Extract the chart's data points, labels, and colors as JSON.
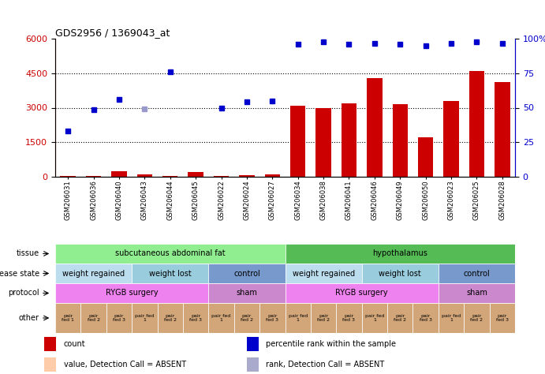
{
  "title": "GDS2956 / 1369043_at",
  "samples": [
    "GSM206031",
    "GSM206036",
    "GSM206040",
    "GSM206043",
    "GSM206044",
    "GSM206045",
    "GSM206022",
    "GSM206024",
    "GSM206027",
    "GSM206034",
    "GSM206038",
    "GSM206041",
    "GSM206046",
    "GSM206049",
    "GSM206050",
    "GSM206023",
    "GSM206025",
    "GSM206028"
  ],
  "bar_values": [
    50,
    20,
    230,
    100,
    40,
    210,
    30,
    80,
    100,
    3100,
    3000,
    3200,
    4300,
    3150,
    1700,
    3300,
    4600,
    4100
  ],
  "dot_values": [
    2000,
    2900,
    3350,
    null,
    4550,
    null,
    3000,
    3250,
    3300,
    5750,
    5850,
    5750,
    5800,
    5750,
    5700,
    5800,
    5850,
    5800
  ],
  "dot_light_values": [
    null,
    null,
    null,
    2950,
    null,
    null,
    null,
    null,
    null,
    null,
    null,
    null,
    null,
    null,
    null,
    null,
    null,
    null
  ],
  "bar_color": "#CC0000",
  "dot_color": "#0000CC",
  "dot_light_color": "#9999CC",
  "ylim_left": [
    0,
    6000
  ],
  "ylim_right": [
    0,
    100
  ],
  "yticks_left": [
    0,
    1500,
    3000,
    4500,
    6000
  ],
  "yticks_right": [
    0,
    25,
    50,
    75,
    100
  ],
  "tissue_segments": [
    {
      "text": "subcutaneous abdominal fat",
      "start": 0,
      "end": 9,
      "color": "#90EE90"
    },
    {
      "text": "hypothalamus",
      "start": 9,
      "end": 18,
      "color": "#55BB55"
    }
  ],
  "disease_segments": [
    {
      "text": "weight regained",
      "start": 0,
      "end": 3,
      "color": "#BBDDEE"
    },
    {
      "text": "weight lost",
      "start": 3,
      "end": 6,
      "color": "#99CCDD"
    },
    {
      "text": "control",
      "start": 6,
      "end": 9,
      "color": "#7799CC"
    },
    {
      "text": "weight regained",
      "start": 9,
      "end": 12,
      "color": "#BBDDEE"
    },
    {
      "text": "weight lost",
      "start": 12,
      "end": 15,
      "color": "#99CCDD"
    },
    {
      "text": "control",
      "start": 15,
      "end": 18,
      "color": "#7799CC"
    }
  ],
  "protocol_segments": [
    {
      "text": "RYGB surgery",
      "start": 0,
      "end": 6,
      "color": "#EE82EE"
    },
    {
      "text": "sham",
      "start": 6,
      "end": 9,
      "color": "#CC88CC"
    },
    {
      "text": "RYGB surgery",
      "start": 9,
      "end": 15,
      "color": "#EE82EE"
    },
    {
      "text": "sham",
      "start": 15,
      "end": 18,
      "color": "#CC88CC"
    }
  ],
  "other_subcells": [
    "pair\nfed 1",
    "pair\nfed 2",
    "pair\nfed 3",
    "pair fed\n1",
    "pair\nfed 2",
    "pair\nfed 3",
    "pair fed\n1",
    "pair\nfed 2",
    "pair\nfed 3",
    "pair fed\n1",
    "pair\nfed 2",
    "pair\nfed 3",
    "pair fed\n1",
    "pair\nfed 2",
    "pair\nfed 3",
    "pair fed\n1",
    "pair\nfed 2",
    "pair\nfed 3"
  ],
  "other_color": "#D2A679",
  "row_labels": [
    "tissue",
    "disease state",
    "protocol",
    "other"
  ],
  "legend_entries": [
    {
      "color": "#CC0000",
      "label": "count"
    },
    {
      "color": "#0000CC",
      "label": "percentile rank within the sample"
    },
    {
      "color": "#FFCCAA",
      "label": "value, Detection Call = ABSENT"
    },
    {
      "color": "#AAAACC",
      "label": "rank, Detection Call = ABSENT"
    }
  ],
  "bg_color": "#FFFFFF"
}
